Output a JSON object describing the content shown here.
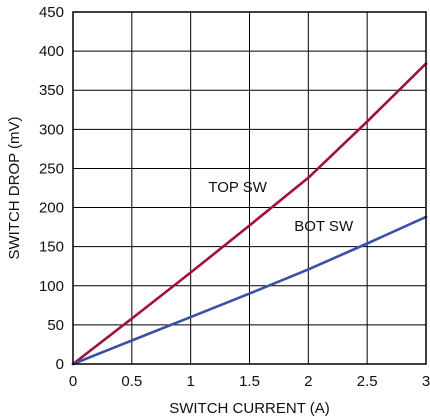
{
  "chart_data": {
    "type": "line",
    "title": "",
    "xlabel": "SWITCH CURRENT (A)",
    "ylabel": "SWITCH DROP (mV)",
    "xlim": [
      0,
      3
    ],
    "ylim": [
      0,
      450
    ],
    "xticks": [
      "0",
      "0.5",
      "1",
      "1.5",
      "2",
      "2.5",
      "3"
    ],
    "yticks": [
      "0",
      "50",
      "100",
      "150",
      "200",
      "250",
      "300",
      "350",
      "400",
      "450"
    ],
    "grid": true,
    "legend": "none",
    "series": [
      {
        "name": "TOP SW",
        "color": "#a0103a",
        "x": [
          0,
          0.5,
          1,
          1.5,
          2,
          2.5,
          3
        ],
        "y": [
          0,
          58,
          117,
          177,
          238,
          310,
          384
        ]
      },
      {
        "name": "BOT SW",
        "color": "#3a50a8",
        "x": [
          0,
          0.5,
          1,
          1.5,
          2,
          2.5,
          3
        ],
        "y": [
          0,
          30,
          60,
          90,
          121,
          154,
          188
        ]
      }
    ],
    "annotations": [
      {
        "text": "TOP SW",
        "x": 1.15,
        "y": 220
      },
      {
        "text": "BOT SW",
        "x": 1.88,
        "y": 170
      }
    ]
  }
}
